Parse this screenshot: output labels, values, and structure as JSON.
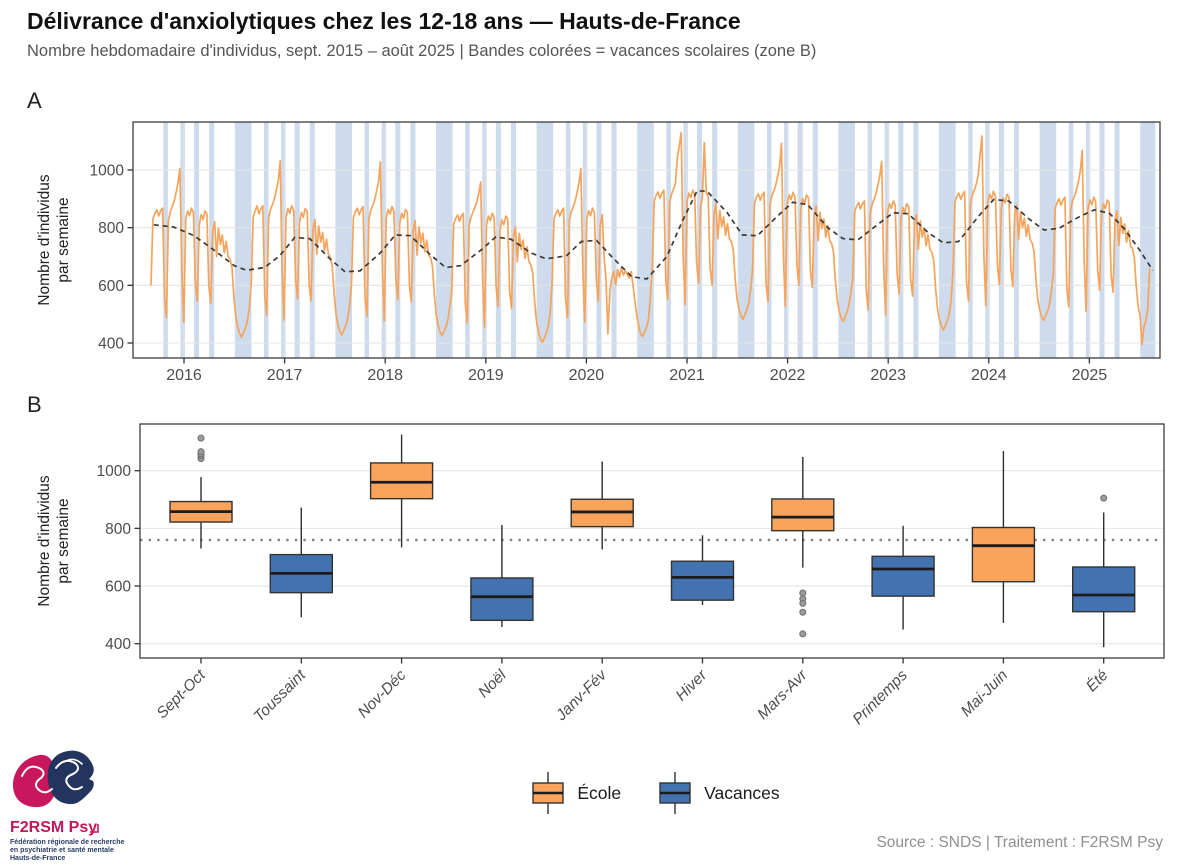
{
  "header": {
    "title": "Délivrance d'anxiolytiques chez les 12-18 ans — Hauts-de-France",
    "subtitle": "Nombre hebdomadaire d'individus, sept. 2015 – août 2025 | Bandes colorées = vacances scolaires (zone B)"
  },
  "panels": {
    "a_label": "A",
    "b_label": "B"
  },
  "colors": {
    "line_orange": "#F6A45B",
    "box_orange": "#F9A35C",
    "box_blue": "#4272B0",
    "vacation_band": "#CDDBEC",
    "trend": "#3a3a3a",
    "ref_line": "#808080",
    "outlier": "#9b9b9b"
  },
  "legend": {
    "items": [
      {
        "label": "École",
        "color": "#F9A35C"
      },
      {
        "label": "Vacances",
        "color": "#4272B0"
      }
    ]
  },
  "footer": {
    "source": "Source : SNDS | Traitement : F2RSM Psy",
    "logo_title": "F2RSM Psy",
    "logo_subtitle_lines": [
      "Fédération régionale de recherche",
      "en psychiatrie et santé mentale",
      "Hauts-de-France"
    ]
  },
  "chart_data": [
    {
      "type": "line",
      "panel": "A",
      "ylabel_lines": [
        "Nombre d'individus",
        "par semaine"
      ],
      "y_ticks": [
        400,
        600,
        800,
        1000
      ],
      "x_ticks_years": [
        2016,
        2017,
        2018,
        2019,
        2020,
        2021,
        2022,
        2023,
        2024,
        2025
      ],
      "x_start": 2015.672,
      "x_step_years": 0.019165,
      "weekly_values": [
        600,
        830,
        850,
        862,
        840,
        858,
        868,
        555,
        488,
        825,
        855,
        872,
        892,
        922,
        955,
        1005,
        645,
        472,
        828,
        858,
        842,
        868,
        852,
        615,
        545,
        808,
        845,
        828,
        858,
        848,
        598,
        538,
        788,
        820,
        700,
        798,
        742,
        775,
        712,
        752,
        700,
        690,
        660,
        560,
        490,
        455,
        432,
        420,
        436,
        452,
        476,
        522,
        608,
        838,
        858,
        875,
        848,
        866,
        876,
        563,
        496,
        833,
        863,
        880,
        900,
        930,
        963,
        1032,
        653,
        480,
        836,
        866,
        850,
        876,
        860,
        623,
        553,
        816,
        853,
        836,
        866,
        856,
        606,
        546,
        796,
        828,
        708,
        806,
        750,
        783,
        720,
        760,
        708,
        698,
        668,
        568,
        498,
        463,
        440,
        428,
        444,
        460,
        484,
        530,
        605,
        835,
        855,
        867,
        845,
        863,
        873,
        560,
        493,
        830,
        860,
        877,
        897,
        927,
        960,
        1028,
        650,
        477,
        833,
        863,
        847,
        873,
        857,
        620,
        550,
        813,
        850,
        833,
        863,
        853,
        603,
        543,
        793,
        825,
        705,
        803,
        747,
        780,
        717,
        757,
        705,
        695,
        665,
        565,
        495,
        460,
        437,
        425,
        441,
        457,
        481,
        527,
        582,
        812,
        832,
        844,
        822,
        840,
        850,
        537,
        470,
        807,
        837,
        854,
        870,
        888,
        920,
        958,
        627,
        454,
        810,
        840,
        824,
        850,
        834,
        597,
        527,
        790,
        827,
        810,
        840,
        830,
        580,
        520,
        770,
        802,
        682,
        780,
        724,
        757,
        694,
        734,
        682,
        672,
        642,
        542,
        472,
        437,
        414,
        402,
        418,
        434,
        458,
        504,
        600,
        830,
        850,
        862,
        840,
        858,
        868,
        555,
        488,
        825,
        855,
        872,
        892,
        922,
        955,
        1005,
        645,
        472,
        828,
        858,
        842,
        868,
        852,
        615,
        545,
        808,
        845,
        700,
        620,
        432,
        580,
        625,
        648,
        602,
        655,
        628,
        662,
        635,
        650,
        640,
        625,
        648,
        600,
        545,
        492,
        458,
        430,
        422,
        438,
        455,
        480,
        560,
        662,
        892,
        912,
        924,
        902,
        920,
        930,
        617,
        550,
        887,
        917,
        934,
        954,
        1040,
        1085,
        1130,
        707,
        534,
        890,
        920,
        904,
        930,
        914,
        677,
        607,
        870,
        907,
        1095,
        920,
        910,
        660,
        600,
        850,
        882,
        762,
        860,
        804,
        837,
        774,
        814,
        762,
        752,
        722,
        622,
        552,
        517,
        494,
        482,
        498,
        514,
        538,
        584,
        655,
        885,
        905,
        917,
        895,
        913,
        923,
        610,
        543,
        880,
        910,
        927,
        947,
        977,
        1010,
        1093,
        700,
        527,
        883,
        913,
        897,
        923,
        907,
        670,
        600,
        863,
        900,
        883,
        913,
        903,
        653,
        593,
        843,
        875,
        755,
        853,
        797,
        830,
        767,
        807,
        755,
        745,
        715,
        615,
        545,
        510,
        487,
        475,
        491,
        507,
        531,
        577,
        625,
        855,
        875,
        887,
        865,
        883,
        893,
        580,
        513,
        850,
        880,
        897,
        917,
        947,
        980,
        1030,
        670,
        497,
        853,
        883,
        867,
        893,
        877,
        640,
        570,
        833,
        870,
        853,
        883,
        873,
        623,
        563,
        813,
        845,
        725,
        823,
        767,
        800,
        737,
        777,
        725,
        715,
        685,
        585,
        515,
        480,
        457,
        445,
        461,
        477,
        501,
        547,
        658,
        888,
        908,
        920,
        898,
        916,
        926,
        613,
        546,
        883,
        913,
        930,
        950,
        980,
        1050,
        1118,
        703,
        530,
        886,
        916,
        900,
        926,
        910,
        673,
        603,
        866,
        903,
        886,
        916,
        906,
        656,
        596,
        846,
        878,
        758,
        856,
        800,
        833,
        770,
        810,
        758,
        748,
        718,
        618,
        548,
        513,
        490,
        478,
        494,
        510,
        534,
        580,
        638,
        868,
        888,
        900,
        878,
        896,
        906,
        593,
        526,
        863,
        893,
        910,
        930,
        960,
        995,
        1068,
        683,
        510,
        866,
        896,
        880,
        906,
        890,
        653,
        583,
        846,
        883,
        866,
        896,
        886,
        636,
        576,
        826,
        858,
        738,
        836,
        780,
        813,
        750,
        790,
        738,
        728,
        698,
        598,
        528,
        493,
        395,
        455,
        478,
        520,
        660
      ],
      "trend_points": [
        [
          2015.7,
          810
        ],
        [
          2015.9,
          802
        ],
        [
          2016.1,
          772
        ],
        [
          2016.3,
          722
        ],
        [
          2016.5,
          668
        ],
        [
          2016.62,
          652
        ],
        [
          2016.8,
          662
        ],
        [
          2016.95,
          702
        ],
        [
          2017.1,
          766
        ],
        [
          2017.25,
          762
        ],
        [
          2017.45,
          692
        ],
        [
          2017.6,
          647
        ],
        [
          2017.75,
          650
        ],
        [
          2017.95,
          712
        ],
        [
          2018.1,
          775
        ],
        [
          2018.25,
          772
        ],
        [
          2018.45,
          706
        ],
        [
          2018.6,
          662
        ],
        [
          2018.75,
          668
        ],
        [
          2018.95,
          722
        ],
        [
          2019.1,
          768
        ],
        [
          2019.25,
          760
        ],
        [
          2019.45,
          712
        ],
        [
          2019.6,
          692
        ],
        [
          2019.8,
          702
        ],
        [
          2019.95,
          752
        ],
        [
          2020.1,
          756
        ],
        [
          2020.25,
          700
        ],
        [
          2020.45,
          630
        ],
        [
          2020.6,
          622
        ],
        [
          2020.8,
          700
        ],
        [
          2020.95,
          820
        ],
        [
          2021.1,
          928
        ],
        [
          2021.2,
          926
        ],
        [
          2021.4,
          852
        ],
        [
          2021.55,
          775
        ],
        [
          2021.7,
          772
        ],
        [
          2021.9,
          840
        ],
        [
          2022.05,
          888
        ],
        [
          2022.2,
          880
        ],
        [
          2022.4,
          800
        ],
        [
          2022.55,
          762
        ],
        [
          2022.7,
          758
        ],
        [
          2022.9,
          812
        ],
        [
          2023.05,
          852
        ],
        [
          2023.2,
          848
        ],
        [
          2023.4,
          782
        ],
        [
          2023.55,
          747
        ],
        [
          2023.7,
          752
        ],
        [
          2023.9,
          840
        ],
        [
          2024.05,
          898
        ],
        [
          2024.2,
          892
        ],
        [
          2024.4,
          830
        ],
        [
          2024.55,
          792
        ],
        [
          2024.7,
          798
        ],
        [
          2024.9,
          838
        ],
        [
          2025.05,
          862
        ],
        [
          2025.2,
          850
        ],
        [
          2025.35,
          795
        ],
        [
          2025.5,
          722
        ],
        [
          2025.63,
          652
        ]
      ],
      "vacation_bands": [
        [
          2015.795,
          2015.84
        ],
        [
          2015.965,
          2016.01
        ],
        [
          2016.1,
          2016.15
        ],
        [
          2016.25,
          2016.3
        ],
        [
          2016.505,
          2016.67
        ],
        [
          2016.795,
          2016.84
        ],
        [
          2016.965,
          2017.01
        ],
        [
          2017.1,
          2017.15
        ],
        [
          2017.25,
          2017.3
        ],
        [
          2017.505,
          2017.67
        ],
        [
          2017.795,
          2017.84
        ],
        [
          2017.965,
          2018.01
        ],
        [
          2018.1,
          2018.15
        ],
        [
          2018.25,
          2018.3
        ],
        [
          2018.505,
          2018.67
        ],
        [
          2018.795,
          2018.84
        ],
        [
          2018.965,
          2019.01
        ],
        [
          2019.1,
          2019.15
        ],
        [
          2019.25,
          2019.3
        ],
        [
          2019.505,
          2019.67
        ],
        [
          2019.795,
          2019.84
        ],
        [
          2019.965,
          2020.01
        ],
        [
          2020.1,
          2020.15
        ],
        [
          2020.25,
          2020.3
        ],
        [
          2020.505,
          2020.67
        ],
        [
          2020.795,
          2020.84
        ],
        [
          2020.965,
          2021.01
        ],
        [
          2021.1,
          2021.15
        ],
        [
          2021.25,
          2021.3
        ],
        [
          2021.505,
          2021.67
        ],
        [
          2021.795,
          2021.84
        ],
        [
          2021.965,
          2022.01
        ],
        [
          2022.1,
          2022.15
        ],
        [
          2022.25,
          2022.3
        ],
        [
          2022.505,
          2022.67
        ],
        [
          2022.795,
          2022.84
        ],
        [
          2022.965,
          2023.01
        ],
        [
          2023.1,
          2023.15
        ],
        [
          2023.25,
          2023.3
        ],
        [
          2023.505,
          2023.67
        ],
        [
          2023.795,
          2023.84
        ],
        [
          2023.965,
          2024.01
        ],
        [
          2024.1,
          2024.15
        ],
        [
          2024.25,
          2024.3
        ],
        [
          2024.505,
          2024.67
        ],
        [
          2024.795,
          2024.84
        ],
        [
          2024.965,
          2025.01
        ],
        [
          2025.1,
          2025.15
        ],
        [
          2025.25,
          2025.3
        ],
        [
          2025.505,
          2025.655
        ]
      ]
    },
    {
      "type": "boxplot",
      "panel": "B",
      "ylabel_lines": [
        "Nombre d'individus",
        "par semaine"
      ],
      "y_ticks": [
        400,
        600,
        800,
        1000
      ],
      "ref_line_value": 760,
      "categories": [
        "Sept-Oct",
        "Toussaint",
        "Nov-Déc",
        "Noël",
        "Janv-Fév",
        "Hiver",
        "Mars-Avr",
        "Printemps",
        "Mai-Juin",
        "Été"
      ],
      "boxes": [
        {
          "label": "Sept-Oct",
          "group": "École",
          "low": 730,
          "q1": 822,
          "med": 858,
          "q3": 893,
          "high": 978,
          "outliers": [
            1042,
            1052,
            1058,
            1066,
            1113
          ]
        },
        {
          "label": "Toussaint",
          "group": "Vacances",
          "low": 492,
          "q1": 577,
          "med": 644,
          "q3": 709,
          "high": 872,
          "outliers": []
        },
        {
          "label": "Nov-Déc",
          "group": "École",
          "low": 734,
          "q1": 903,
          "med": 960,
          "q3": 1027,
          "high": 1125,
          "outliers": []
        },
        {
          "label": "Noël",
          "group": "Vacances",
          "low": 458,
          "q1": 481,
          "med": 563,
          "q3": 628,
          "high": 812,
          "outliers": []
        },
        {
          "label": "Janv-Fév",
          "group": "École",
          "low": 727,
          "q1": 806,
          "med": 857,
          "q3": 901,
          "high": 1032,
          "outliers": []
        },
        {
          "label": "Hiver",
          "group": "Vacances",
          "low": 534,
          "q1": 551,
          "med": 630,
          "q3": 686,
          "high": 776,
          "outliers": []
        },
        {
          "label": "Mars-Avr",
          "group": "École",
          "low": 664,
          "q1": 792,
          "med": 839,
          "q3": 902,
          "high": 1048,
          "outliers": [
            576,
            556,
            540,
            509,
            434
          ]
        },
        {
          "label": "Printemps",
          "group": "Vacances",
          "low": 449,
          "q1": 565,
          "med": 659,
          "q3": 703,
          "high": 809,
          "outliers": []
        },
        {
          "label": "Mai-Juin",
          "group": "École",
          "low": 472,
          "q1": 615,
          "med": 740,
          "q3": 803,
          "high": 1068,
          "outliers": []
        },
        {
          "label": "Été",
          "group": "Vacances",
          "low": 388,
          "q1": 511,
          "med": 569,
          "q3": 666,
          "high": 855,
          "outliers": [
            905
          ]
        }
      ]
    }
  ]
}
